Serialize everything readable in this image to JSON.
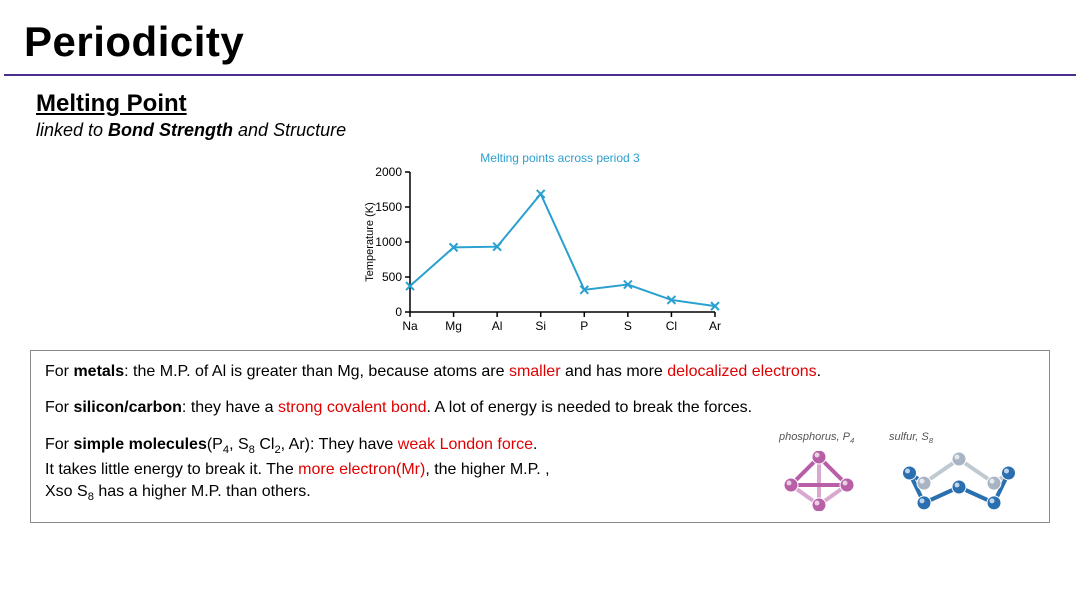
{
  "title": "Periodicity",
  "section_title": "Melting Point",
  "subtitle_prefix": "linked to ",
  "subtitle_bold": "Bond Strength",
  "subtitle_suffix": " and Structure",
  "chart": {
    "type": "line-scatter",
    "title": "Melting points across period 3",
    "ylabel": "Temperature (K)",
    "categories": [
      "Na",
      "Mg",
      "Al",
      "Si",
      "P",
      "S",
      "Cl",
      "Ar"
    ],
    "values": [
      371,
      923,
      933,
      1687,
      317,
      392,
      172,
      84
    ],
    "ytick_values": [
      0,
      500,
      1000,
      1500,
      2000
    ],
    "ylim": [
      0,
      2000
    ],
    "line_color": "#2aa0d0",
    "marker": "x",
    "marker_color": "#2aa0d0",
    "axis_color": "#000000",
    "line_width": 2
  },
  "body": {
    "p1_a": "For ",
    "p1_b": "metals",
    "p1_c": ": the M.P. of Al is greater than Mg, because atoms are ",
    "p1_d": "smaller",
    "p1_e": " and has more ",
    "p1_f": "delocalized electrons",
    "p1_g": ".",
    "p2_a": "For ",
    "p2_b": "silicon/carbon",
    "p2_c": ": they have a ",
    "p2_d": "strong covalent bond",
    "p2_e": ". A lot of energy is needed to break the forces.",
    "p3_a": "For ",
    "p3_b": "simple molecules",
    "p3_c": "(P",
    "p3_d": "4",
    "p3_e": ", S",
    "p3_f": "8",
    "p3_g": " Cl",
    "p3_h": "2",
    "p3_i": ", Ar): They have ",
    "p3_j": "weak London force",
    "p3_k": ".",
    "p4_a": "It takes little energy to break it. The ",
    "p4_b": "more electron(Mr)",
    "p4_c": ", the higher M.P. ,",
    "p5_a": "Xso S",
    "p5_b": "8",
    "p5_c": " has a higher M.P. than others."
  },
  "molecules": {
    "p4_label_a": "phosphorus, P",
    "p4_label_sub": "4",
    "s8_label_a": "sulfur, S",
    "s8_label_sub": "8",
    "p4_color": "#b85fa8",
    "p4_edge": "#d8a8d0",
    "s8_color": "#2a6fb0",
    "s8_edge": "#c0c8d0"
  }
}
